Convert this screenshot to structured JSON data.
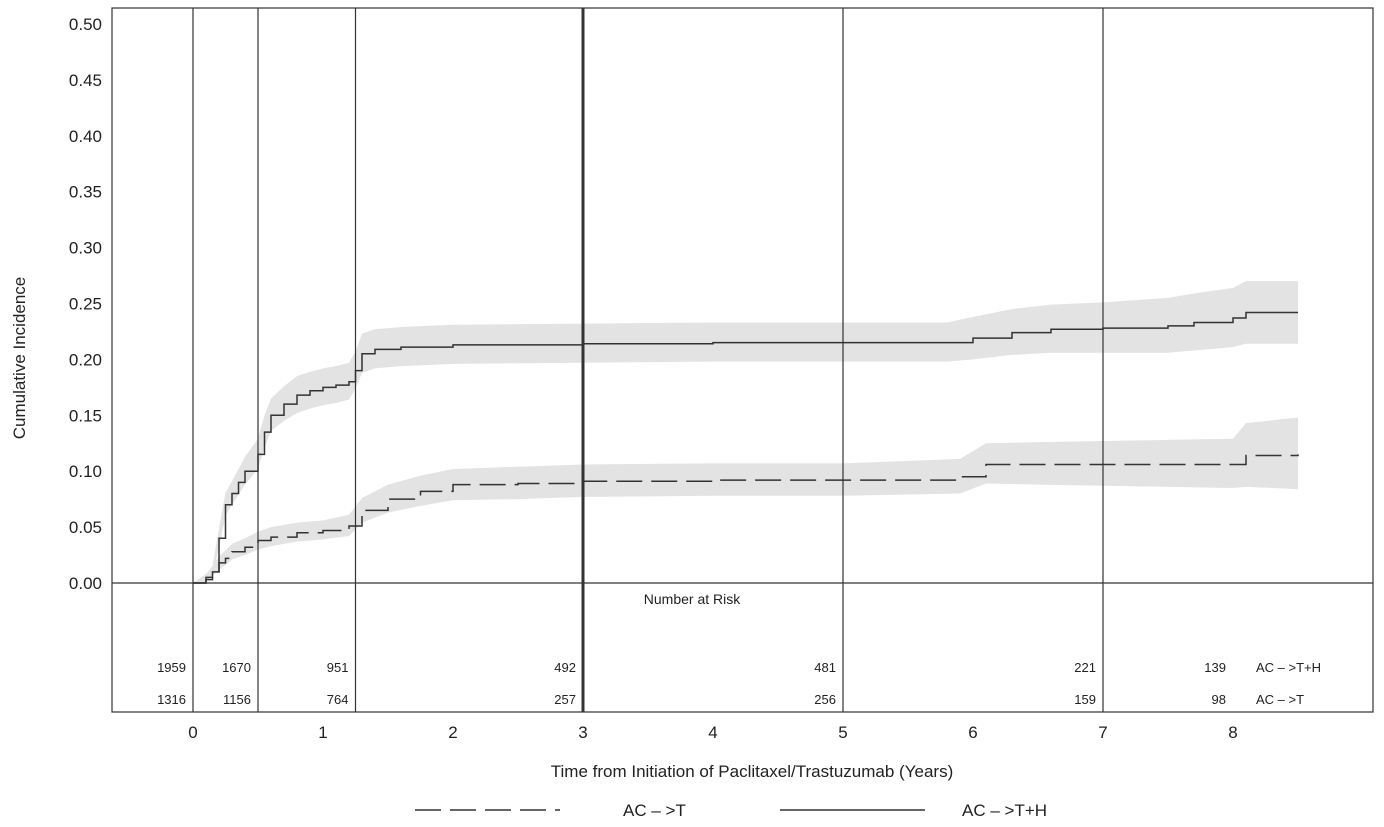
{
  "chart_data": {
    "type": "line",
    "title": "",
    "xlabel": "Time from Initiation of Paclitaxel/Trastuzumab (Years)",
    "ylabel": "Cumulative Incidence",
    "xlim": [
      -0.6,
      9.05
    ],
    "ylim": [
      0,
      0.51
    ],
    "x_ticks": [
      "0",
      "1",
      "2",
      "3",
      "4",
      "5",
      "6",
      "7",
      "8"
    ],
    "y_ticks": [
      "0.00",
      "0.05",
      "0.10",
      "0.15",
      "0.20",
      "0.25",
      "0.30",
      "0.35",
      "0.40",
      "0.45",
      "0.50"
    ],
    "vertical_lines": [
      0,
      0.5,
      1.25,
      3,
      5,
      7
    ],
    "legend_placement": "bottom-center",
    "series": [
      {
        "name": "AC – >T",
        "style": "dashed",
        "x": [
          0,
          0.1,
          0.15,
          0.2,
          0.25,
          0.3,
          0.4,
          0.5,
          0.6,
          0.8,
          1.0,
          1.2,
          1.3,
          1.5,
          1.75,
          2.0,
          2.5,
          3.0,
          4.0,
          5.0,
          5.9,
          6.1,
          6.5,
          7.0,
          7.5,
          8.0,
          8.1,
          8.5
        ],
        "y": [
          0,
          0.005,
          0.01,
          0.018,
          0.022,
          0.028,
          0.032,
          0.038,
          0.041,
          0.045,
          0.047,
          0.051,
          0.065,
          0.075,
          0.082,
          0.088,
          0.089,
          0.091,
          0.092,
          0.092,
          0.095,
          0.106,
          0.106,
          0.106,
          0.106,
          0.106,
          0.114,
          0.115
        ],
        "ci_lower": [
          0,
          0.003,
          0.006,
          0.012,
          0.016,
          0.021,
          0.025,
          0.03,
          0.033,
          0.037,
          0.039,
          0.042,
          0.054,
          0.063,
          0.069,
          0.074,
          0.075,
          0.077,
          0.078,
          0.078,
          0.08,
          0.089,
          0.088,
          0.087,
          0.086,
          0.085,
          0.086,
          0.084
        ],
        "ci_upper": [
          0,
          0.008,
          0.015,
          0.024,
          0.029,
          0.035,
          0.04,
          0.046,
          0.05,
          0.054,
          0.056,
          0.061,
          0.076,
          0.088,
          0.096,
          0.102,
          0.104,
          0.106,
          0.107,
          0.107,
          0.111,
          0.125,
          0.126,
          0.127,
          0.128,
          0.129,
          0.143,
          0.148
        ]
      },
      {
        "name": "AC – >T+H",
        "style": "solid",
        "x": [
          0,
          0.1,
          0.15,
          0.2,
          0.25,
          0.3,
          0.35,
          0.4,
          0.5,
          0.55,
          0.6,
          0.7,
          0.8,
          0.9,
          1.0,
          1.1,
          1.2,
          1.25,
          1.3,
          1.4,
          1.6,
          2.0,
          3.0,
          4.0,
          5.0,
          5.5,
          5.8,
          6.0,
          6.3,
          6.6,
          7.0,
          7.5,
          7.7,
          8.0,
          8.1,
          8.5
        ],
        "y": [
          0,
          0.003,
          0.01,
          0.04,
          0.07,
          0.08,
          0.09,
          0.1,
          0.115,
          0.135,
          0.15,
          0.16,
          0.168,
          0.172,
          0.175,
          0.177,
          0.18,
          0.19,
          0.205,
          0.209,
          0.211,
          0.213,
          0.214,
          0.215,
          0.215,
          0.215,
          0.215,
          0.219,
          0.224,
          0.227,
          0.228,
          0.23,
          0.233,
          0.237,
          0.242,
          0.242
        ],
        "ci_lower": [
          0,
          0.001,
          0.006,
          0.032,
          0.06,
          0.07,
          0.079,
          0.088,
          0.102,
          0.121,
          0.136,
          0.145,
          0.152,
          0.156,
          0.159,
          0.161,
          0.164,
          0.174,
          0.188,
          0.192,
          0.194,
          0.196,
          0.197,
          0.198,
          0.198,
          0.198,
          0.198,
          0.2,
          0.204,
          0.206,
          0.206,
          0.206,
          0.208,
          0.211,
          0.214,
          0.214
        ],
        "ci_upper": [
          0,
          0.006,
          0.015,
          0.049,
          0.081,
          0.091,
          0.102,
          0.113,
          0.129,
          0.15,
          0.165,
          0.176,
          0.185,
          0.189,
          0.192,
          0.194,
          0.197,
          0.207,
          0.223,
          0.227,
          0.229,
          0.231,
          0.232,
          0.233,
          0.233,
          0.233,
          0.233,
          0.238,
          0.245,
          0.249,
          0.251,
          0.255,
          0.259,
          0.264,
          0.27,
          0.27
        ]
      }
    ],
    "number_at_risk": {
      "title": "Number at Risk",
      "rows": [
        {
          "label": "AC – >T+H",
          "values": [
            "1959",
            "1670",
            "951",
            "492",
            "481",
            "221",
            "139"
          ]
        },
        {
          "label": "AC – >T",
          "values": [
            "1316",
            "1156",
            "764",
            "257",
            "256",
            "159",
            "98"
          ]
        }
      ]
    }
  }
}
